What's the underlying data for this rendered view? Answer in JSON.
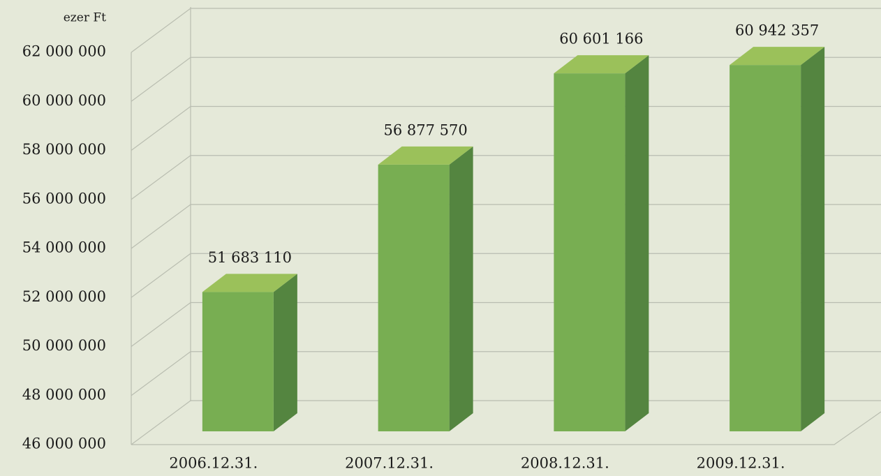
{
  "chart_data": {
    "type": "bar3d",
    "unit_label": "ezer Ft",
    "categories": [
      "2006.12.31.",
      "2007.12.31.",
      "2008.12.31.",
      "2009.12.31."
    ],
    "values": [
      51683110,
      56877570,
      60601166,
      60942357
    ],
    "value_labels": [
      "51 683 110",
      "56 877 570",
      "60 601 166",
      "60 942 357"
    ],
    "color": "#78ae52",
    "ylim": [
      46000000,
      62000000
    ],
    "yticks": [
      {
        "value": 46000000,
        "label": "46 000 000"
      },
      {
        "value": 48000000,
        "label": "48 000 000"
      },
      {
        "value": 50000000,
        "label": "50 000 000"
      },
      {
        "value": 52000000,
        "label": "52 000 000"
      },
      {
        "value": 54000000,
        "label": "54 000 000"
      },
      {
        "value": 56000000,
        "label": "56 000 000"
      },
      {
        "value": 58000000,
        "label": "58 000 000"
      },
      {
        "value": 60000000,
        "label": "60 000 000"
      },
      {
        "value": 62000000,
        "label": "62 000 000"
      }
    ],
    "grid": true
  }
}
